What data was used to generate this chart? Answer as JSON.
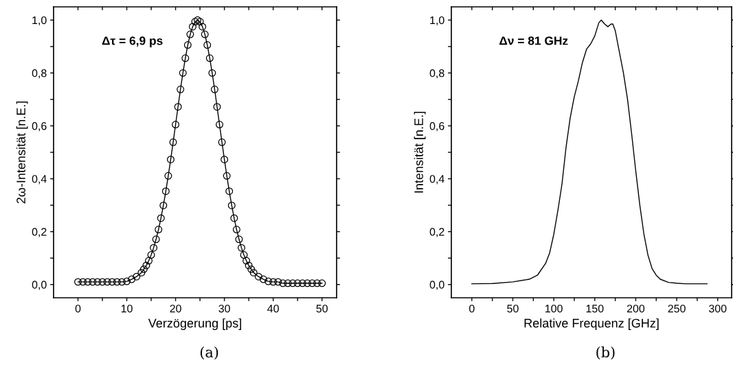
{
  "chart_data": [
    {
      "type": "line",
      "xlabel": "Verzögerung [ps]",
      "ylabel": "2ω-Intensität [n.E.]",
      "marker": "circle",
      "xlim": [
        -5,
        53
      ],
      "ylim": [
        -0.05,
        1.05
      ],
      "xticks": [
        0,
        {
          "value": 5,
          "label": null
        },
        10,
        {
          "value": 15,
          "label": null
        },
        20,
        {
          "value": 25,
          "label": null
        },
        30,
        {
          "value": 35,
          "label": null
        },
        40,
        {
          "value": 45,
          "label": null
        },
        50
      ],
      "yticks": [
        {
          "value": 0,
          "label": "0,0"
        },
        {
          "value": 0.1,
          "label": null
        },
        {
          "value": 0.2,
          "label": "0,2"
        },
        {
          "value": 0.3,
          "label": null
        },
        {
          "value": 0.4,
          "label": "0,4"
        },
        {
          "value": 0.5,
          "label": null
        },
        {
          "value": 0.6,
          "label": "0,6"
        },
        {
          "value": 0.7,
          "label": null
        },
        {
          "value": 0.8,
          "label": "0,8"
        },
        {
          "value": 0.9,
          "label": null
        },
        {
          "value": 1.0,
          "label": "1,0"
        }
      ],
      "series": [
        {
          "color": "#000000",
          "x": [
            0,
            1,
            2,
            3,
            4,
            5,
            6,
            7,
            8,
            9,
            10,
            11,
            12,
            13,
            13.5,
            14,
            14.5,
            15,
            15.5,
            16,
            16.5,
            17,
            17.5,
            18,
            18.5,
            19,
            19.5,
            20,
            20.5,
            21,
            21.5,
            22,
            22.5,
            23,
            23.5,
            24,
            24.5,
            25,
            25.5,
            26,
            26.5,
            27,
            27.5,
            28,
            28.5,
            29,
            29.5,
            30,
            30.5,
            31,
            31.5,
            32,
            32.5,
            33,
            33.5,
            34,
            34.5,
            35,
            35.5,
            36,
            37,
            38,
            39,
            40,
            41,
            42,
            43,
            44,
            45,
            46,
            47,
            48,
            49,
            50
          ],
          "values": [
            0.01,
            0.01,
            0.01,
            0.01,
            0.01,
            0.01,
            0.01,
            0.01,
            0.01,
            0.01,
            0.012,
            0.02,
            0.03,
            0.045,
            0.058,
            0.072,
            0.09,
            0.112,
            0.139,
            0.171,
            0.208,
            0.251,
            0.299,
            0.353,
            0.411,
            0.473,
            0.538,
            0.605,
            0.672,
            0.738,
            0.8,
            0.856,
            0.906,
            0.946,
            0.975,
            0.994,
            1.0,
            0.994,
            0.975,
            0.946,
            0.906,
            0.856,
            0.8,
            0.738,
            0.672,
            0.605,
            0.538,
            0.473,
            0.411,
            0.353,
            0.299,
            0.251,
            0.208,
            0.171,
            0.139,
            0.112,
            0.09,
            0.072,
            0.058,
            0.045,
            0.03,
            0.02,
            0.012,
            0.01,
            0.01,
            0.005,
            0.005,
            0.005,
            0.005,
            0.005,
            0.005,
            0.005,
            0.005,
            0.005
          ]
        }
      ],
      "annotations": [
        "Δτ = 6,9 ps",
        "(a)"
      ]
    },
    {
      "type": "line",
      "xlabel": "Relative Frequenz [GHz]",
      "ylabel": "Intensität [n.E.]",
      "xlim": [
        -25,
        317
      ],
      "ylim": [
        -0.05,
        1.05
      ],
      "xticks": [
        0,
        {
          "value": 25,
          "label": null
        },
        50,
        {
          "value": 75,
          "label": null
        },
        100,
        {
          "value": 125,
          "label": null
        },
        150,
        {
          "value": 175,
          "label": null
        },
        200,
        {
          "value": 225,
          "label": null
        },
        250,
        {
          "value": 275,
          "label": null
        },
        300
      ],
      "yticks": [
        {
          "value": 0,
          "label": "0,0"
        },
        {
          "value": 0.1,
          "label": null
        },
        {
          "value": 0.2,
          "label": "0,2"
        },
        {
          "value": 0.3,
          "label": null
        },
        {
          "value": 0.4,
          "label": "0,4"
        },
        {
          "value": 0.5,
          "label": null
        },
        {
          "value": 0.6,
          "label": "0,6"
        },
        {
          "value": 0.7,
          "label": null
        },
        {
          "value": 0.8,
          "label": "0,8"
        },
        {
          "value": 0.9,
          "label": null
        },
        {
          "value": 1.0,
          "label": "1,0"
        }
      ],
      "series": [
        {
          "color": "#000000",
          "x": [
            0,
            25,
            50,
            70,
            80,
            90,
            95,
            100,
            105,
            110,
            115,
            120,
            125,
            130,
            135,
            140,
            145,
            150,
            155,
            158,
            162,
            166,
            170,
            172,
            175,
            180,
            185,
            190,
            195,
            200,
            205,
            210,
            215,
            220,
            225,
            230,
            240,
            250,
            260,
            287
          ],
          "values": [
            0.003,
            0.004,
            0.01,
            0.02,
            0.035,
            0.08,
            0.12,
            0.19,
            0.28,
            0.38,
            0.52,
            0.63,
            0.71,
            0.77,
            0.84,
            0.89,
            0.91,
            0.94,
            0.99,
            1.0,
            0.985,
            0.975,
            0.985,
            0.985,
            0.96,
            0.88,
            0.8,
            0.7,
            0.57,
            0.43,
            0.3,
            0.19,
            0.11,
            0.06,
            0.035,
            0.02,
            0.008,
            0.005,
            0.003,
            0.003
          ]
        }
      ],
      "annotations": [
        "Δν = 81 GHz",
        "(b)"
      ]
    }
  ]
}
